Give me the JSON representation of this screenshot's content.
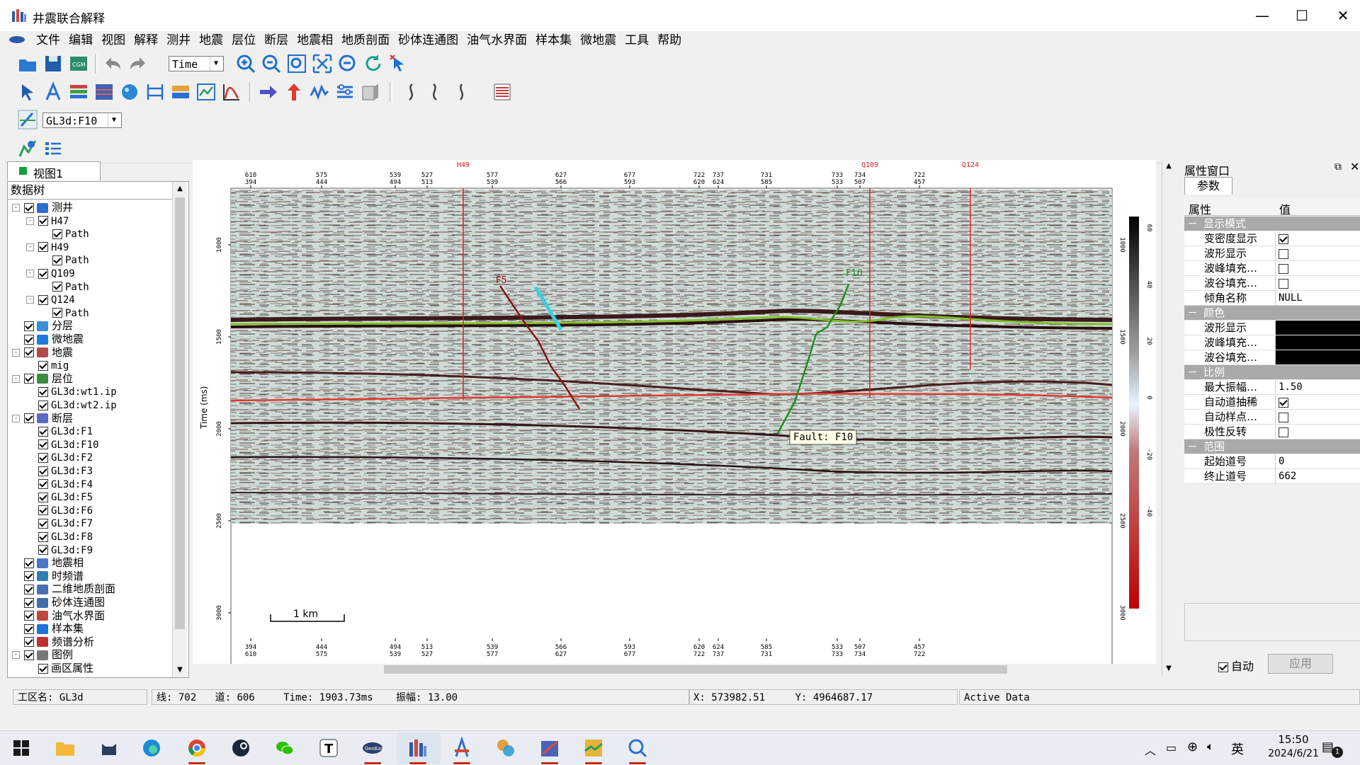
{
  "window": {
    "title": "井震联合解释"
  },
  "menu": [
    "文件",
    "编辑",
    "视图",
    "解释",
    "测井",
    "地震",
    "层位",
    "断层",
    "地震相",
    "地质剖面",
    "砂体连通图",
    "油气水界面",
    "样本集",
    "微地震",
    "工具",
    "帮助"
  ],
  "toolbar": {
    "domain_value": "Time",
    "fault_select_value": "GL3d:F10"
  },
  "panel": {
    "tab_label": "视图1",
    "tree_header": "数据树"
  },
  "tree": [
    {
      "label": "测井",
      "level": 0,
      "checked": true,
      "expand": "-",
      "icon": "#2a6fd0"
    },
    {
      "label": "H47",
      "level": 1,
      "checked": true,
      "expand": "-",
      "mono": true
    },
    {
      "label": "Path",
      "level": 2,
      "checked": true,
      "mono": true
    },
    {
      "label": "H49",
      "level": 1,
      "checked": true,
      "expand": "-",
      "mono": true
    },
    {
      "label": "Path",
      "level": 2,
      "checked": true,
      "mono": true
    },
    {
      "label": "Q109",
      "level": 1,
      "checked": true,
      "expand": "-",
      "mono": true
    },
    {
      "label": "Path",
      "level": 2,
      "checked": true,
      "mono": true
    },
    {
      "label": "Q124",
      "level": 1,
      "checked": true,
      "expand": "-",
      "mono": true
    },
    {
      "label": "Path",
      "level": 2,
      "checked": true,
      "mono": true
    },
    {
      "label": "分层",
      "level": 0,
      "checked": true,
      "icon": "#3a8fd9"
    },
    {
      "label": "微地震",
      "level": 0,
      "checked": true,
      "icon": "#1d7be0"
    },
    {
      "label": "地震",
      "level": 0,
      "checked": true,
      "expand": "-",
      "icon": "#b34a4a"
    },
    {
      "label": "mig",
      "level": 1,
      "checked": true,
      "mono": true
    },
    {
      "label": "层位",
      "level": 0,
      "checked": true,
      "expand": "-",
      "icon": "#3d8c3d"
    },
    {
      "label": "GL3d:wt1.ip",
      "level": 1,
      "checked": true,
      "mono": true
    },
    {
      "label": "GL3d:wt2.ip",
      "level": 1,
      "checked": true,
      "mono": true
    },
    {
      "label": "断层",
      "level": 0,
      "checked": true,
      "expand": "-",
      "icon": "#5a6cc0"
    },
    {
      "label": "GL3d:F1",
      "level": 1,
      "checked": true,
      "mono": true
    },
    {
      "label": "GL3d:F10",
      "level": 1,
      "checked": true,
      "mono": true
    },
    {
      "label": "GL3d:F2",
      "level": 1,
      "checked": true,
      "mono": true
    },
    {
      "label": "GL3d:F3",
      "level": 1,
      "checked": true,
      "mono": true
    },
    {
      "label": "GL3d:F4",
      "level": 1,
      "checked": true,
      "mono": true
    },
    {
      "label": "GL3d:F5",
      "level": 1,
      "checked": true,
      "mono": true
    },
    {
      "label": "GL3d:F6",
      "level": 1,
      "checked": true,
      "mono": true
    },
    {
      "label": "GL3d:F7",
      "level": 1,
      "checked": true,
      "mono": true
    },
    {
      "label": "GL3d:F8",
      "level": 1,
      "checked": true,
      "mono": true
    },
    {
      "label": "GL3d:F9",
      "level": 1,
      "checked": true,
      "mono": true
    },
    {
      "label": "地震相",
      "level": 0,
      "checked": true,
      "icon": "#4a78c8"
    },
    {
      "label": "时频谱",
      "level": 0,
      "checked": true,
      "icon": "#2f7fb5"
    },
    {
      "label": "二维地质剖面",
      "level": 0,
      "checked": true,
      "icon": "#4b6fb3"
    },
    {
      "label": "砂体连通图",
      "level": 0,
      "checked": true,
      "icon": "#3e6fa8"
    },
    {
      "label": "油气水界面",
      "level": 0,
      "checked": true,
      "icon": "#c0473e"
    },
    {
      "label": "样本集",
      "level": 0,
      "checked": true,
      "icon": "#1f73d6"
    },
    {
      "label": "频谱分析",
      "level": 0,
      "checked": true,
      "icon": "#c03030"
    },
    {
      "label": "图例",
      "level": 0,
      "checked": true,
      "expand": "-",
      "icon": "#777"
    },
    {
      "label": "画区属性",
      "level": 1,
      "checked": true
    }
  ],
  "section": {
    "top_traces": [
      [
        "610",
        "394"
      ],
      [
        "575",
        "444"
      ],
      [
        "539",
        "494"
      ],
      [
        "527",
        "513"
      ],
      [
        "577",
        "539"
      ],
      [
        "627",
        "566"
      ],
      [
        "677",
        "593"
      ],
      [
        "722",
        "620"
      ],
      [
        "737",
        "624"
      ],
      [
        "731",
        "585"
      ],
      [
        "733",
        "533"
      ],
      [
        "734",
        "507"
      ],
      [
        "722",
        "457"
      ]
    ],
    "bottom_traces": [
      [
        "394",
        "610"
      ],
      [
        "444",
        "575"
      ],
      [
        "494",
        "539"
      ],
      [
        "513",
        "527"
      ],
      [
        "539",
        "577"
      ],
      [
        "566",
        "627"
      ],
      [
        "593",
        "677"
      ],
      [
        "620",
        "722"
      ],
      [
        "624",
        "737"
      ],
      [
        "585",
        "731"
      ],
      [
        "533",
        "733"
      ],
      [
        "507",
        "734"
      ],
      [
        "457",
        "722"
      ]
    ],
    "wells": [
      "H49",
      "Q109",
      "Q124"
    ],
    "y_label": "Time (ms)",
    "y_ticks": [
      "1000",
      "1500",
      "2000",
      "2500",
      "3000"
    ],
    "faults": [
      "F5",
      "F10"
    ],
    "tooltip": "Fault: F10",
    "scale_bar": "1 km",
    "colorbar_ticks": [
      "60",
      "40",
      "20",
      "0",
      "-20",
      "-40"
    ]
  },
  "props": {
    "title": "属性窗口",
    "tab": "参数",
    "col_key": "属性",
    "col_val": "值",
    "sections": [
      {
        "name": "显示模式",
        "rows": [
          {
            "k": "变密度显示",
            "check": true
          },
          {
            "k": "波形显示",
            "check": false
          },
          {
            "k": "波峰填充…",
            "check": false
          },
          {
            "k": "波谷填充…",
            "check": false
          },
          {
            "k": "倾角名称",
            "v": "NULL"
          }
        ]
      },
      {
        "name": "颜色",
        "rows": [
          {
            "k": "波形显示",
            "color": "#000000"
          },
          {
            "k": "波峰填充…",
            "color": "#000000"
          },
          {
            "k": "波谷填充…",
            "color": "#000000"
          }
        ]
      },
      {
        "name": "比例",
        "rows": [
          {
            "k": "最大振幅…",
            "v": "1.50"
          },
          {
            "k": "自动道抽稀",
            "check": true
          },
          {
            "k": "自动样点…",
            "check": false
          },
          {
            "k": "极性反转",
            "check": false
          }
        ]
      },
      {
        "name": "范围",
        "rows": [
          {
            "k": "起始道号",
            "v": "0"
          },
          {
            "k": "终止道号",
            "v": "662"
          }
        ]
      }
    ],
    "auto_label": "自动",
    "apply_label": "应用"
  },
  "status": {
    "workspace": "工区名: GL3d",
    "line": "线: 702",
    "trace": "道: 606",
    "time": "Time: 1903.73ms",
    "amp": "振幅: 13.00",
    "x": "X: 573982.51",
    "y": "Y: 4964687.17",
    "mode": "Active Data"
  },
  "taskbar": {
    "time": "15:50",
    "date": "2024/6/21",
    "ime": "英",
    "notif": "1"
  }
}
